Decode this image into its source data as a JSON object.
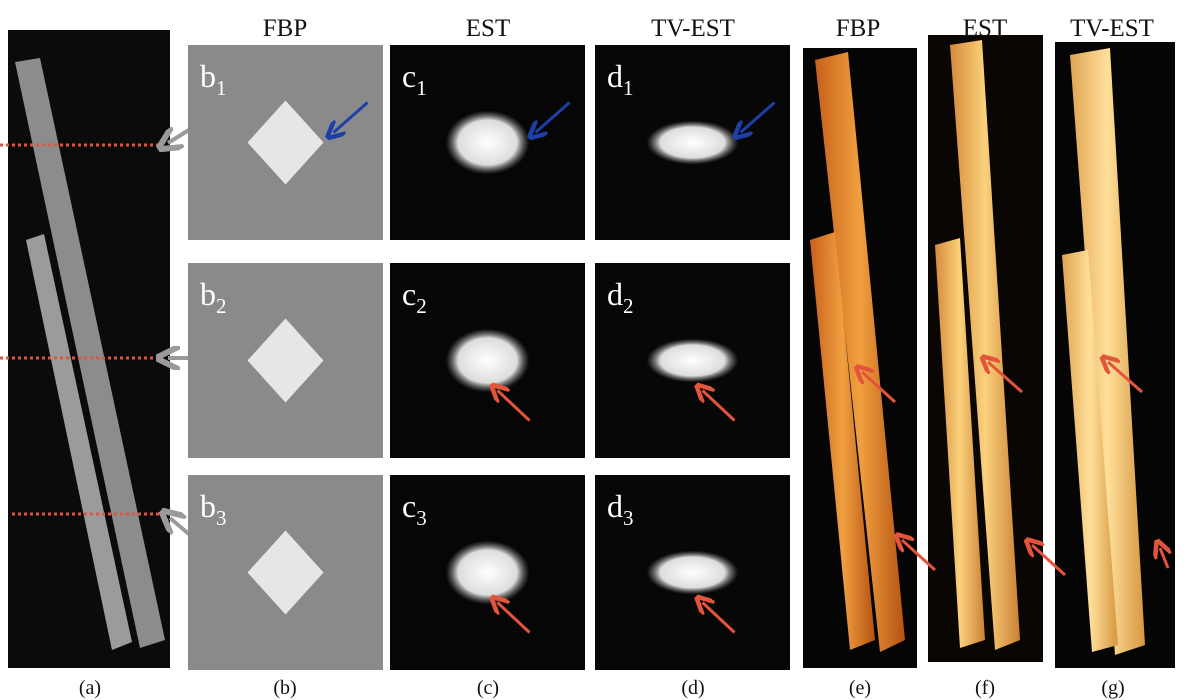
{
  "headers": [
    "FBP",
    "EST",
    "TV-EST",
    "FBP",
    "EST",
    "TV-EST"
  ],
  "panel_labels": [
    {
      "letter": "b",
      "index": "1"
    },
    {
      "letter": "b",
      "index": "2"
    },
    {
      "letter": "b",
      "index": "3"
    },
    {
      "letter": "c",
      "index": "1"
    },
    {
      "letter": "c",
      "index": "2"
    },
    {
      "letter": "c",
      "index": "3"
    },
    {
      "letter": "d",
      "index": "1"
    },
    {
      "letter": "d",
      "index": "2"
    },
    {
      "letter": "d",
      "index": "3"
    }
  ],
  "captions": [
    "(a)",
    "(b)",
    "(c)",
    "(d)",
    "(e)",
    "(f)",
    "(g)"
  ]
}
